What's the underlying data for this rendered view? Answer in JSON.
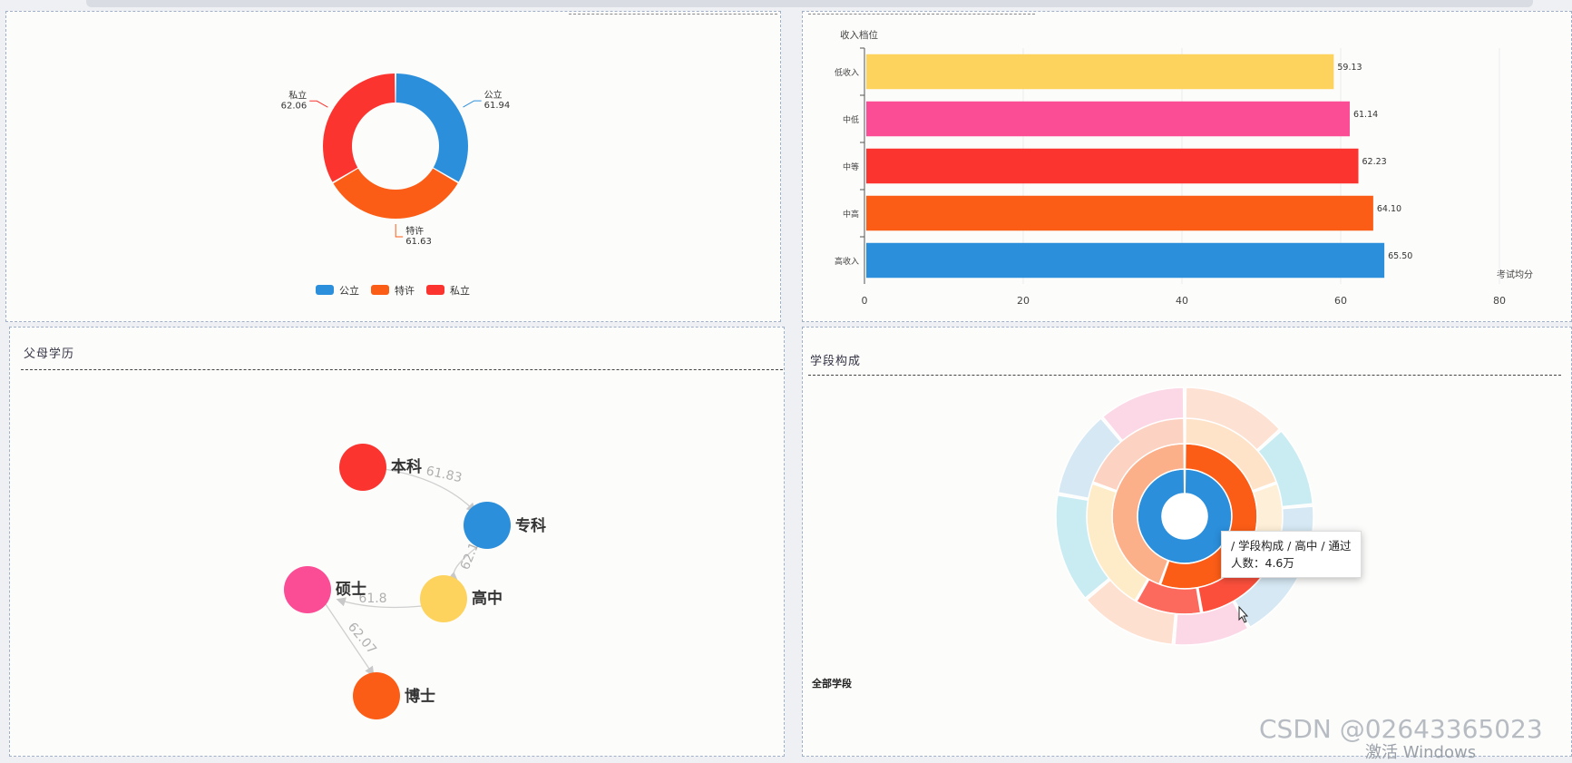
{
  "colors": {
    "blue": "#2b8fdc",
    "orange": "#fb5d16",
    "red": "#fb3430",
    "yellow": "#fdd35e",
    "pink": "#fb4c96"
  },
  "donut": {
    "legend": [
      "公立",
      "特许",
      "私立"
    ],
    "slices": [
      {
        "name": "公立",
        "value": 61.94,
        "value_label": "61.94",
        "color": "#2b8fdc"
      },
      {
        "name": "特许",
        "value": 61.63,
        "value_label": "61.63",
        "color": "#fb5d16"
      },
      {
        "name": "私立",
        "value": 62.06,
        "value_label": "62.06",
        "color": "#fb3430"
      }
    ]
  },
  "chart_data": [
    {
      "type": "pie",
      "categories": [
        "公立",
        "特许",
        "私立"
      ],
      "values": [
        61.94,
        61.63,
        62.06
      ],
      "legend": "bottom"
    },
    {
      "type": "bar",
      "orientation": "horizontal",
      "ylabel": "收入档位",
      "xlabel": "考试均分",
      "categories": [
        "低收入",
        "中低",
        "中等",
        "中高",
        "高收入"
      ],
      "values": [
        59.13,
        61.14,
        62.23,
        64.1,
        65.5
      ],
      "value_labels": [
        "59.13",
        "61.14",
        "62.23",
        "64.10",
        "65.50"
      ],
      "colors": [
        "#fdd35e",
        "#fb4c96",
        "#fb3430",
        "#fb5d16",
        "#2b8fdc"
      ],
      "xlim": [
        0,
        80
      ],
      "xticks": [
        "0",
        "20",
        "40",
        "60",
        "80"
      ]
    }
  ],
  "bar_chart": {
    "ylabel": "收入档位",
    "xlabel": "考试均分",
    "categories": [
      "低收入",
      "中低",
      "中等",
      "中高",
      "高收入"
    ],
    "value_labels": [
      "59.13",
      "61.14",
      "62.23",
      "64.10",
      "65.50"
    ],
    "values": [
      59.13,
      61.14,
      62.23,
      64.1,
      65.5
    ],
    "colors": [
      "#fdd35e",
      "#fb4c96",
      "#fb3430",
      "#fb5d16",
      "#2b8fdc"
    ],
    "xmax": 80,
    "xticks": [
      "0",
      "20",
      "40",
      "60",
      "80"
    ]
  },
  "graph_panel": {
    "title": "父母学历",
    "nodes": [
      {
        "label": "本科",
        "color": "#fb3430"
      },
      {
        "label": "专科",
        "color": "#2b8fdc"
      },
      {
        "label": "高中",
        "color": "#fdd35e"
      },
      {
        "label": "硕士",
        "color": "#fb4c96"
      },
      {
        "label": "博士",
        "color": "#fb5d16"
      }
    ],
    "edges": [
      {
        "from": "本科",
        "to": "专科",
        "label": "61.83"
      },
      {
        "from": "专科",
        "to": "高中",
        "label": "62.1"
      },
      {
        "from": "高中",
        "to": "硕士",
        "label": "61.8"
      },
      {
        "from": "硕士",
        "to": "博士",
        "label": "62.07"
      }
    ]
  },
  "sunburst_panel": {
    "title": "学段构成",
    "footer": "全部学段",
    "tooltip_line1": "/ 学段构成 / 高中 / 通过",
    "tooltip_line2": "人数：4.6万"
  },
  "watermark": {
    "csdn": "CSDN @02643365023",
    "activate": "激活 Windows"
  }
}
